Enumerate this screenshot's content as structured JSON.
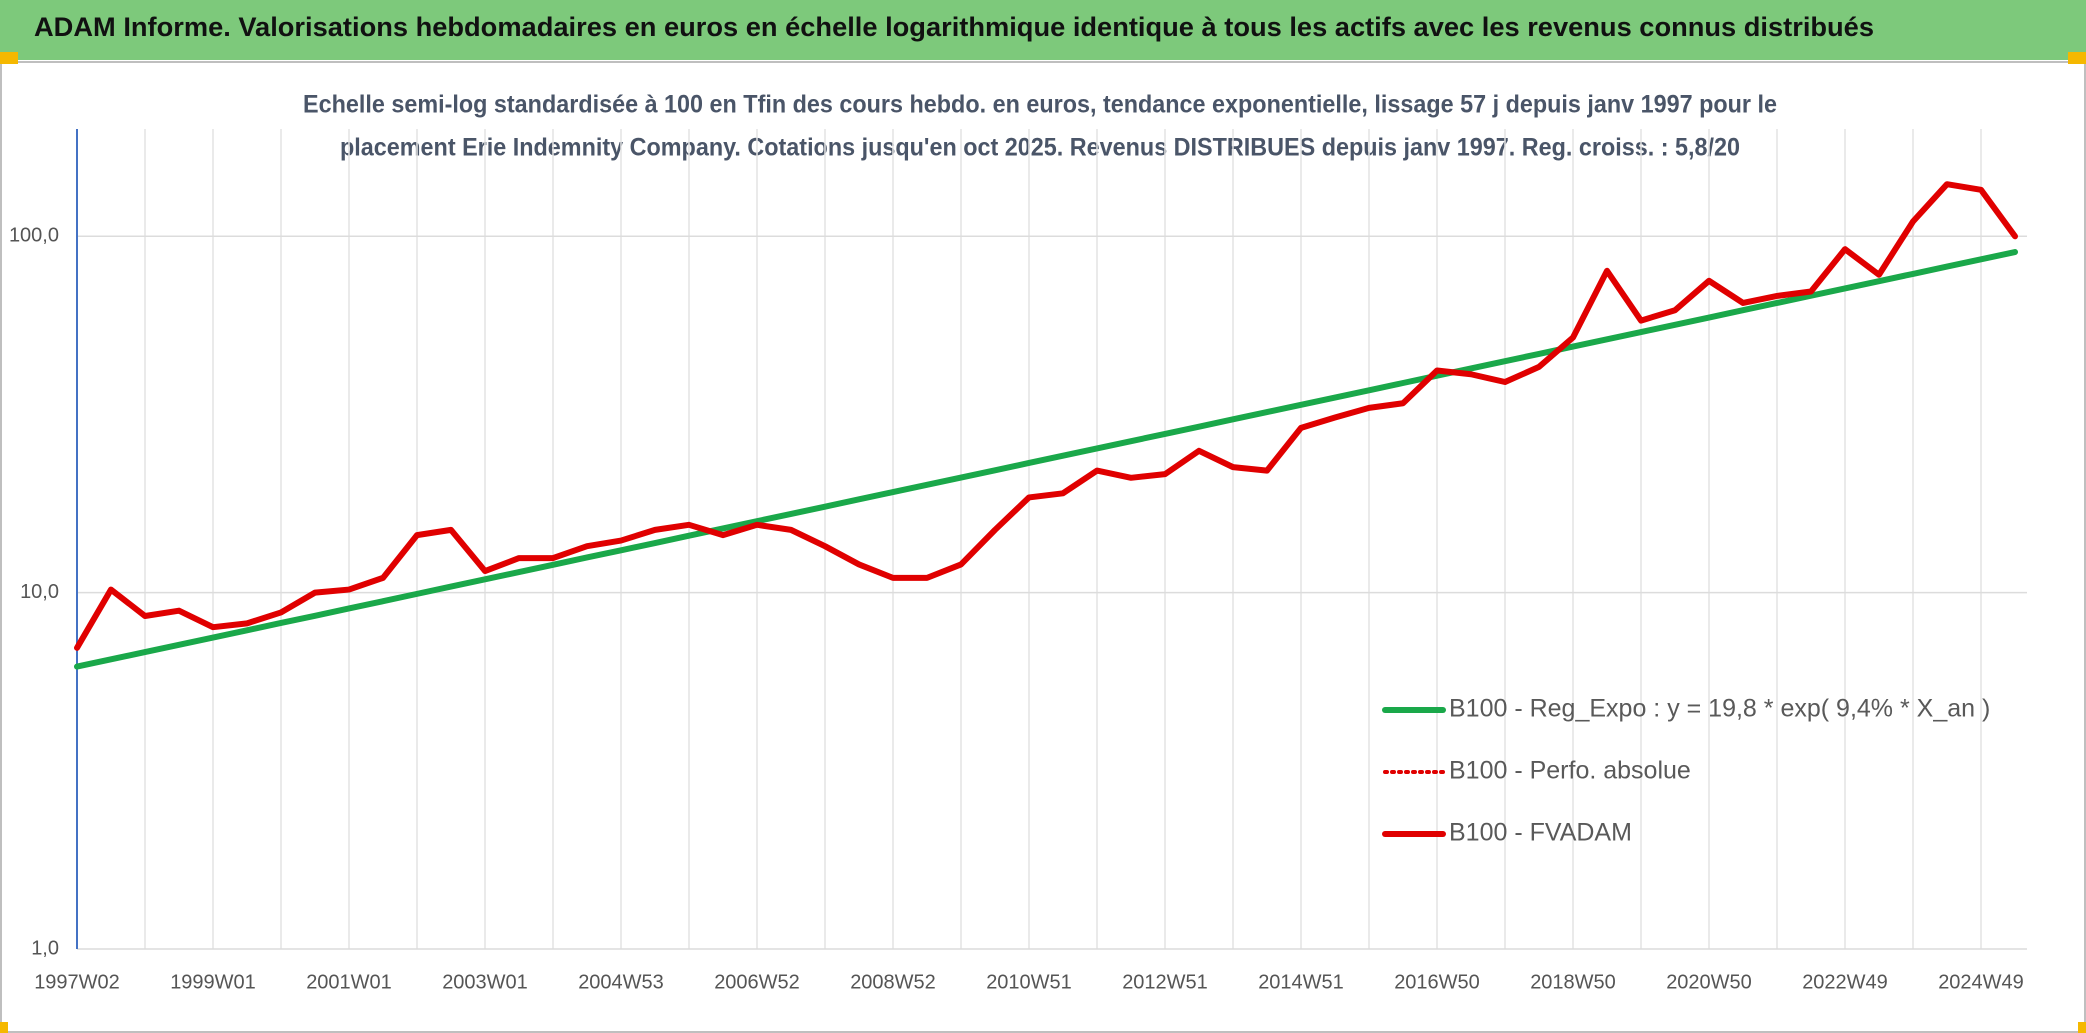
{
  "chart_data": {
    "type": "line",
    "title": "ADAM Informe. Valorisations hebdomadaires en euros en échelle logarithmique identique à tous les actifs avec les revenus connus distribués",
    "subtitle": [
      "Echelle semi-log standardisée à 100 en Tfin des cours hebdo. en euros, tendance exponentielle, lissage 57 j depuis janv 1997 pour le",
      "placement Erie Indemnity Company. Cotations jusqu'en oct 2025. Revenus DISTRIBUES depuis janv 1997. Reg. croiss. : 5,8/20"
    ],
    "categories": [
      "1997W02",
      null,
      null,
      null,
      "1999W01",
      null,
      null,
      null,
      "2001W01",
      null,
      null,
      null,
      "2003W01",
      null,
      null,
      null,
      "2004W53",
      null,
      null,
      null,
      "2006W52",
      null,
      null,
      null,
      "2008W52",
      null,
      null,
      null,
      "2010W51",
      null,
      null,
      null,
      "2012W51",
      null,
      null,
      null,
      "2014W51",
      null,
      null,
      null,
      "2016W50",
      null,
      null,
      null,
      "2018W50",
      null,
      null,
      null,
      "2020W50",
      null,
      null,
      null,
      "2022W49",
      null,
      null,
      null,
      "2024W49",
      null
    ],
    "log_scale": true,
    "ylim": [
      1,
      200
    ],
    "yticks": [
      {
        "value": 1,
        "label": "1,0"
      },
      {
        "value": 10,
        "label": "10,0"
      },
      {
        "value": 100,
        "label": "100,0"
      }
    ],
    "grid": true,
    "legend_position": "lower right",
    "series": [
      {
        "name": "B100 - Reg_Expo : y = 19,8 * exp( 9,4% *  X_an )",
        "color": "#1aa84a",
        "style": "solid",
        "values": [
          6.2,
          6.5,
          6.81,
          7.14,
          7.48,
          7.84,
          8.22,
          8.61,
          9.03,
          9.46,
          9.92,
          10.4,
          10.9,
          11.42,
          11.97,
          12.55,
          13.15,
          13.78,
          14.45,
          15.14,
          15.87,
          16.63,
          17.43,
          18.27,
          19.15,
          20.07,
          21.04,
          22.05,
          23.11,
          24.22,
          25.39,
          26.61,
          27.89,
          29.23,
          30.64,
          32.11,
          33.66,
          35.28,
          36.97,
          38.75,
          40.62,
          42.57,
          44.62,
          46.77,
          49.02,
          51.38,
          53.85,
          56.44,
          59.16,
          62.01,
          64.99,
          68.12,
          71.4,
          74.83,
          78.43,
          82.21,
          86.16,
          90.31
        ]
      },
      {
        "name": "B100 - Perfo. absolue",
        "color": "#e00000",
        "style": "dotted",
        "values": [
          7.0,
          10.2,
          8.6,
          8.9,
          8.0,
          8.2,
          8.8,
          10.0,
          10.2,
          11.0,
          14.5,
          15.0,
          11.5,
          12.5,
          12.5,
          13.5,
          14.0,
          15.0,
          15.5,
          14.5,
          15.5,
          15.0,
          13.5,
          12.0,
          11.0,
          11.0,
          12.0,
          15.0,
          18.5,
          19.0,
          22.0,
          21.0,
          21.5,
          25.0,
          22.5,
          22.0,
          29.0,
          31.0,
          33.0,
          34.0,
          42.0,
          41.0,
          39.0,
          43.0,
          52.0,
          80.0,
          58.0,
          62.0,
          75.0,
          65.0,
          68.0,
          70.0,
          92.0,
          78.0,
          110.0,
          140.0,
          135.0,
          100.0
        ]
      },
      {
        "name": "B100 - FVADAM",
        "color": "#e00000",
        "style": "solid",
        "values": [
          7.0,
          10.2,
          8.6,
          8.9,
          8.0,
          8.2,
          8.8,
          10.0,
          10.2,
          11.0,
          14.5,
          15.0,
          11.5,
          12.5,
          12.5,
          13.5,
          14.0,
          15.0,
          15.5,
          14.5,
          15.5,
          15.0,
          13.5,
          12.0,
          11.0,
          11.0,
          12.0,
          15.0,
          18.5,
          19.0,
          22.0,
          21.0,
          21.5,
          25.0,
          22.5,
          22.0,
          29.0,
          31.0,
          33.0,
          34.0,
          42.0,
          41.0,
          39.0,
          43.0,
          52.0,
          80.0,
          58.0,
          62.0,
          75.0,
          65.0,
          68.0,
          70.0,
          92.0,
          78.0,
          110.0,
          140.0,
          135.0,
          100.0
        ]
      }
    ]
  }
}
